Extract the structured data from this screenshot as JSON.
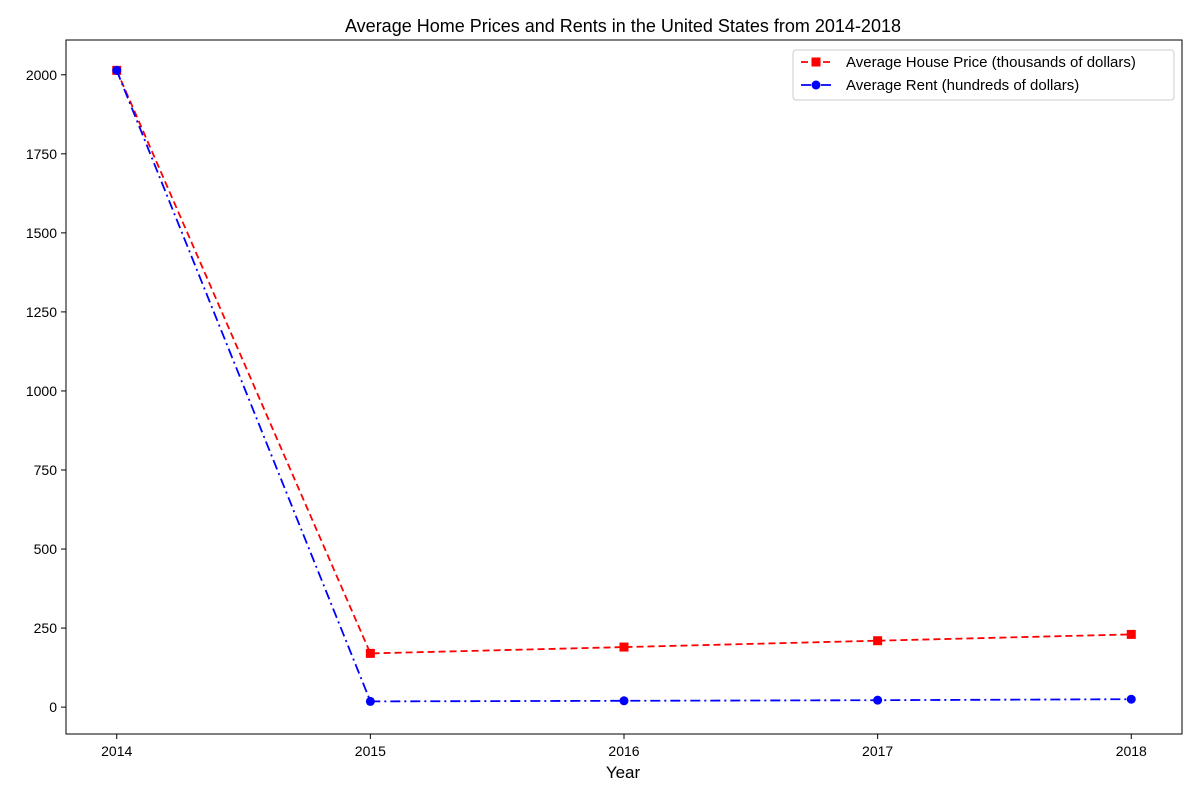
{
  "chart_data": {
    "type": "line",
    "title": "Average Home Prices and Rents in the United States from 2014-2018",
    "xlabel": "Year",
    "ylabel": "",
    "x": [
      2014,
      2015,
      2016,
      2017,
      2018
    ],
    "xlim": [
      2013.8,
      2018.2
    ],
    "ylim": [
      -85,
      2110
    ],
    "yticks": [
      0,
      250,
      500,
      750,
      1000,
      1250,
      1500,
      1750,
      2000
    ],
    "grid": false,
    "legend_position": "top-right",
    "series": [
      {
        "name": "Average House Price (thousands of dollars)",
        "values": [
          2014,
          170,
          190,
          210,
          230
        ],
        "color": "#ff0000",
        "line_style": "dashed",
        "marker": "square"
      },
      {
        "name": "Average Rent (hundreds of dollars)",
        "values": [
          2014,
          18,
          20,
          22,
          25
        ],
        "color": "#0000ff",
        "line_style": "dash-dot",
        "marker": "circle"
      }
    ]
  }
}
